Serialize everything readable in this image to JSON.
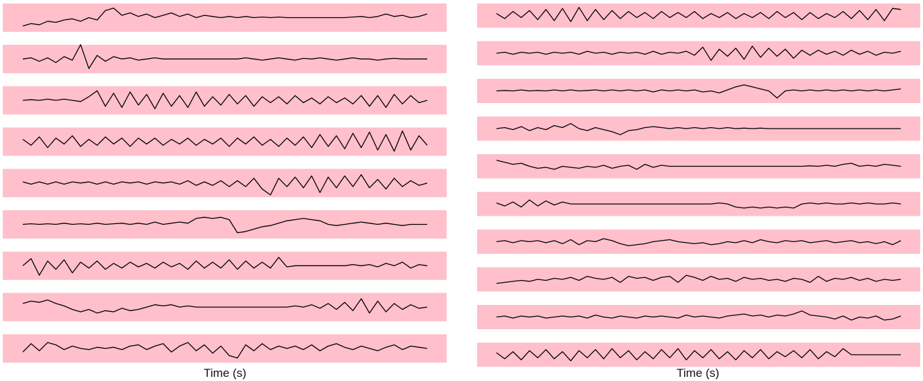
{
  "chart_data": [
    {
      "type": "line",
      "xlabel": "Time (s)",
      "grid": false,
      "background_color": "#ffc0cb",
      "trace_color": "#000000",
      "series": [
        {
          "values": [
            -0.7,
            -0.5,
            -0.6,
            -0.3,
            -0.4,
            -0.2,
            -0.1,
            -0.3,
            0.0,
            -0.2,
            0.6,
            0.8,
            0.2,
            0.4,
            0.1,
            0.3,
            0.0,
            0.2,
            0.4,
            0.1,
            0.3,
            0.0,
            0.2,
            0.1,
            0.0,
            0.1,
            0.0,
            0.1,
            0.0,
            0.05,
            0.0,
            0.05,
            0.0,
            0.0,
            0.0,
            0.0,
            0.0,
            0.0,
            0.0,
            0.0,
            0.05,
            0.1,
            0.0,
            0.1,
            0.3,
            0.1,
            0.2,
            0.0,
            0.1,
            0.3
          ]
        },
        {
          "values": [
            0.0,
            0.1,
            -0.2,
            0.1,
            -0.3,
            0.2,
            -0.1,
            1.2,
            -0.8,
            0.3,
            -0.2,
            0.2,
            0.0,
            0.1,
            -0.1,
            0.0,
            0.1,
            0.0,
            0.0,
            0.0,
            0.0,
            0.0,
            0.0,
            0.0,
            0.0,
            0.0,
            0.0,
            0.1,
            0.0,
            -0.1,
            0.0,
            0.1,
            0.0,
            -0.1,
            0.05,
            0.0,
            0.1,
            0.0,
            -0.1,
            0.0,
            0.1,
            0.0,
            0.0,
            -0.1,
            0.0,
            0.05,
            0.0,
            0.0,
            0.0,
            0.0
          ]
        },
        {
          "values": [
            0.0,
            0.05,
            0.0,
            0.1,
            0.0,
            0.1,
            0.0,
            -0.1,
            0.3,
            0.8,
            -0.5,
            0.6,
            -0.6,
            0.7,
            -0.4,
            0.5,
            -0.7,
            0.6,
            -0.5,
            0.4,
            -0.6,
            0.7,
            -0.5,
            0.3,
            -0.4,
            0.5,
            -0.3,
            0.4,
            -0.5,
            0.3,
            -0.2,
            0.3,
            -0.3,
            0.4,
            -0.2,
            0.2,
            -0.3,
            0.3,
            -0.2,
            0.2,
            -0.3,
            0.4,
            -0.5,
            0.4,
            -0.6,
            0.5,
            -0.3,
            0.4,
            -0.2,
            0.0
          ]
        },
        {
          "values": [
            0.2,
            -0.3,
            0.4,
            -0.5,
            0.3,
            -0.2,
            0.5,
            -0.4,
            0.2,
            -0.3,
            0.4,
            -0.2,
            0.3,
            -0.4,
            0.3,
            -0.2,
            0.3,
            -0.3,
            0.2,
            -0.2,
            0.3,
            -0.3,
            0.2,
            -0.2,
            0.3,
            -0.4,
            0.3,
            -0.2,
            0.4,
            -0.3,
            0.2,
            -0.4,
            0.3,
            -0.3,
            0.4,
            -0.5,
            0.6,
            -0.4,
            0.5,
            -0.6,
            0.7,
            -0.5,
            0.8,
            -0.7,
            0.6,
            -0.8,
            0.9,
            -0.7,
            0.5,
            -0.3
          ]
        },
        {
          "values": [
            0.1,
            -0.1,
            0.1,
            -0.1,
            0.1,
            -0.1,
            0.1,
            0.0,
            0.1,
            -0.1,
            0.1,
            -0.1,
            0.1,
            0.0,
            0.1,
            -0.1,
            0.1,
            0.0,
            0.1,
            -0.1,
            0.2,
            -0.2,
            0.1,
            -0.2,
            0.2,
            -0.3,
            0.2,
            -0.3,
            0.4,
            -0.5,
            -1.0,
            0.4,
            -0.3,
            0.5,
            -0.4,
            0.6,
            -0.8,
            0.5,
            -0.4,
            0.6,
            -0.3,
            0.7,
            -0.4,
            0.3,
            -0.5,
            0.4,
            -0.3,
            0.2,
            -0.2,
            0.0
          ]
        },
        {
          "values": [
            0.0,
            0.05,
            0.0,
            0.05,
            0.0,
            0.1,
            0.0,
            0.05,
            0.0,
            0.1,
            0.0,
            0.05,
            0.1,
            0.0,
            0.1,
            0.0,
            0.2,
            0.0,
            0.1,
            0.2,
            0.1,
            0.5,
            0.6,
            0.5,
            0.6,
            0.4,
            -0.7,
            -0.6,
            -0.4,
            -0.2,
            -0.1,
            0.1,
            0.3,
            0.4,
            0.5,
            0.4,
            0.3,
            0.0,
            -0.1,
            0.0,
            0.1,
            0.2,
            0.1,
            0.0,
            0.1,
            0.0,
            -0.1,
            0.0,
            0.0,
            0.0
          ]
        },
        {
          "values": [
            0.0,
            0.6,
            -0.8,
            0.4,
            -0.3,
            0.5,
            -0.6,
            0.3,
            -0.2,
            0.4,
            -0.3,
            0.2,
            -0.2,
            0.3,
            -0.1,
            0.2,
            -0.2,
            0.3,
            -0.1,
            0.2,
            -0.3,
            0.4,
            -0.2,
            0.3,
            -0.2,
            0.5,
            -0.3,
            0.4,
            -0.2,
            0.3,
            -0.2,
            0.7,
            -0.1,
            0.0,
            0.0,
            0.0,
            0.0,
            0.0,
            0.0,
            0.0,
            0.1,
            0.0,
            0.1,
            -0.1,
            0.2,
            0.0,
            0.3,
            -0.2,
            0.1,
            0.0
          ]
        },
        {
          "values": [
            0.3,
            0.5,
            0.4,
            0.6,
            0.3,
            0.1,
            -0.2,
            -0.4,
            -0.2,
            -0.5,
            -0.3,
            -0.4,
            -0.1,
            -0.3,
            -0.2,
            0.0,
            0.2,
            0.1,
            0.2,
            0.0,
            0.1,
            0.0,
            0.0,
            0.0,
            0.0,
            0.0,
            0.0,
            0.0,
            0.0,
            0.0,
            0.0,
            0.0,
            0.0,
            0.1,
            0.0,
            0.2,
            -0.1,
            0.3,
            -0.2,
            0.4,
            -0.3,
            0.7,
            -0.5,
            0.5,
            -0.4,
            0.3,
            -0.2,
            0.2,
            -0.1,
            0.0
          ]
        },
        {
          "values": [
            -0.3,
            0.4,
            -0.2,
            0.5,
            0.3,
            -0.1,
            0.2,
            0.0,
            -0.1,
            0.1,
            0.0,
            0.1,
            -0.1,
            0.2,
            0.3,
            -0.1,
            0.2,
            0.4,
            -0.3,
            0.2,
            0.5,
            -0.2,
            0.3,
            -0.4,
            0.2,
            -0.6,
            -0.8,
            0.3,
            -0.2,
            0.4,
            -0.1,
            0.2,
            0.0,
            0.2,
            -0.1,
            0.3,
            -0.2,
            0.2,
            0.4,
            0.1,
            -0.1,
            0.2,
            0.0,
            -0.2,
            0.1,
            0.3,
            -0.1,
            0.2,
            0.1,
            0.0
          ]
        }
      ]
    },
    {
      "type": "line",
      "xlabel": "Time (s)",
      "grid": false,
      "background_color": "#ffc0cb",
      "trace_color": "#000000",
      "series": [
        {
          "values": [
            0.2,
            -0.3,
            0.4,
            -0.2,
            0.5,
            -0.4,
            0.6,
            -0.5,
            0.7,
            -0.6,
            0.8,
            -0.5,
            0.6,
            -0.4,
            0.5,
            -0.3,
            0.4,
            -0.2,
            0.3,
            -0.3,
            0.4,
            -0.2,
            0.3,
            -0.2,
            0.4,
            -0.3,
            0.2,
            -0.2,
            0.3,
            -0.3,
            0.2,
            -0.2,
            0.3,
            -0.3,
            0.4,
            -0.2,
            0.3,
            -0.4,
            0.3,
            -0.3,
            0.2,
            -0.2,
            0.4,
            -0.3,
            0.5,
            -0.4,
            0.6,
            -0.5,
            0.7,
            0.6
          ]
        },
        {
          "values": [
            0.0,
            0.1,
            -0.1,
            0.1,
            0.0,
            0.1,
            -0.1,
            0.1,
            0.0,
            0.1,
            -0.1,
            0.2,
            0.0,
            0.1,
            -0.1,
            0.1,
            0.0,
            0.1,
            -0.1,
            0.2,
            -0.1,
            0.1,
            0.0,
            0.2,
            -0.2,
            0.6,
            -0.7,
            0.4,
            -0.3,
            0.5,
            -0.6,
            0.7,
            -0.4,
            0.5,
            -0.3,
            0.4,
            -0.5,
            0.3,
            -0.2,
            0.3,
            -0.1,
            0.2,
            -0.2,
            0.3,
            -0.1,
            0.2,
            -0.2,
            0.1,
            0.0,
            0.2
          ]
        },
        {
          "values": [
            0.0,
            0.05,
            0.0,
            0.1,
            0.0,
            0.05,
            0.0,
            0.1,
            0.0,
            0.1,
            0.0,
            0.05,
            0.1,
            0.0,
            0.1,
            0.0,
            0.1,
            0.0,
            0.1,
            -0.1,
            0.1,
            0.0,
            0.1,
            0.0,
            0.1,
            -0.1,
            0.0,
            -0.2,
            0.1,
            0.4,
            0.6,
            0.4,
            0.2,
            0.0,
            -0.7,
            0.0,
            0.1,
            0.0,
            0.1,
            0.0,
            0.1,
            0.0,
            0.1,
            0.0,
            0.1,
            0.0,
            0.1,
            0.0,
            0.1,
            0.2
          ]
        },
        {
          "values": [
            0.0,
            0.1,
            -0.1,
            0.2,
            -0.2,
            0.1,
            -0.1,
            0.3,
            0.1,
            0.5,
            0.0,
            -0.2,
            0.1,
            -0.1,
            -0.3,
            -0.6,
            -0.2,
            -0.1,
            0.1,
            0.2,
            0.1,
            0.0,
            0.1,
            0.0,
            0.1,
            0.0,
            0.1,
            0.0,
            0.1,
            0.0,
            0.05,
            0.0,
            0.05,
            0.0,
            0.0,
            0.0,
            0.0,
            0.0,
            0.0,
            0.0,
            0.0,
            0.0,
            0.0,
            0.0,
            0.0,
            0.0,
            0.0,
            0.0,
            0.0,
            0.0
          ]
        },
        {
          "values": [
            0.6,
            0.4,
            0.2,
            0.3,
            0.0,
            -0.2,
            -0.1,
            -0.3,
            0.0,
            -0.1,
            -0.2,
            0.0,
            -0.1,
            0.1,
            -0.2,
            0.0,
            0.1,
            -0.3,
            0.2,
            -0.1,
            0.1,
            0.0,
            0.0,
            0.0,
            0.0,
            0.0,
            0.0,
            0.0,
            0.0,
            0.0,
            0.0,
            0.0,
            0.0,
            0.0,
            0.0,
            0.0,
            0.0,
            0.0,
            0.05,
            0.0,
            0.1,
            0.0,
            0.2,
            0.3,
            0.0,
            0.1,
            0.0,
            0.2,
            0.1,
            0.0
          ]
        },
        {
          "values": [
            0.1,
            -0.2,
            0.2,
            -0.3,
            0.4,
            -0.2,
            0.3,
            -0.1,
            0.2,
            0.0,
            0.0,
            0.0,
            0.0,
            0.0,
            0.0,
            0.0,
            0.0,
            0.0,
            0.0,
            0.0,
            0.0,
            0.0,
            0.0,
            0.0,
            0.0,
            0.0,
            0.0,
            0.1,
            0.0,
            -0.3,
            -0.4,
            -0.3,
            -0.4,
            -0.3,
            -0.4,
            -0.3,
            -0.4,
            0.0,
            0.1,
            0.0,
            0.1,
            0.0,
            0.0,
            0.1,
            0.0,
            0.1,
            0.0,
            0.0,
            0.1,
            0.0
          ]
        },
        {
          "values": [
            0.0,
            0.1,
            -0.1,
            0.1,
            0.0,
            0.1,
            -0.1,
            0.1,
            -0.2,
            0.2,
            -0.3,
            0.1,
            0.0,
            0.3,
            0.1,
            -0.2,
            -0.4,
            -0.3,
            -0.2,
            0.0,
            0.1,
            0.2,
            0.0,
            -0.1,
            -0.2,
            -0.1,
            -0.3,
            -0.2,
            0.0,
            -0.1,
            0.1,
            -0.1,
            0.2,
            0.0,
            -0.1,
            0.1,
            0.0,
            0.1,
            -0.1,
            0.0,
            0.1,
            -0.1,
            0.0,
            0.1,
            -0.1,
            0.0,
            -0.2,
            0.0,
            -0.3,
            0.1
          ]
        },
        {
          "values": [
            -0.4,
            -0.3,
            -0.2,
            -0.1,
            -0.2,
            0.0,
            -0.1,
            0.1,
            0.0,
            0.2,
            -0.1,
            0.3,
            0.1,
            0.0,
            0.2,
            -0.3,
            0.3,
            0.1,
            0.2,
            -0.1,
            0.2,
            0.3,
            -0.3,
            0.4,
            0.2,
            -0.1,
            0.3,
            0.0,
            0.1,
            -0.2,
            0.2,
            0.0,
            0.1,
            -0.1,
            0.0,
            -0.2,
            0.1,
            0.0,
            -0.3,
            0.3,
            -0.2,
            0.1,
            0.0,
            0.2,
            -0.1,
            0.1,
            -0.2,
            0.0,
            -0.1,
            0.0
          ]
        },
        {
          "values": [
            0.0,
            0.1,
            -0.1,
            0.1,
            0.0,
            0.1,
            -0.1,
            0.0,
            0.1,
            0.0,
            0.1,
            -0.1,
            0.2,
            0.0,
            -0.1,
            0.1,
            0.0,
            -0.1,
            0.1,
            0.0,
            0.1,
            0.0,
            -0.1,
            0.2,
            0.0,
            0.1,
            0.0,
            -0.1,
            0.1,
            0.2,
            0.3,
            0.1,
            0.2,
            0.0,
            0.2,
            0.1,
            0.3,
            0.6,
            0.2,
            0.1,
            0.0,
            -0.2,
            0.1,
            -0.3,
            0.0,
            -0.1,
            0.1,
            -0.3,
            -0.2,
            0.1
          ]
        },
        {
          "values": [
            0.2,
            -0.4,
            0.3,
            -0.5,
            0.4,
            -0.3,
            0.5,
            -0.4,
            0.3,
            -0.6,
            0.4,
            -0.3,
            0.5,
            -0.4,
            0.6,
            -0.3,
            0.4,
            -0.5,
            0.3,
            -0.4,
            0.5,
            -0.3,
            0.6,
            -0.5,
            0.4,
            -0.3,
            0.5,
            -0.4,
            0.3,
            -0.5,
            0.4,
            -0.3,
            0.5,
            -0.4,
            0.3,
            -0.2,
            0.4,
            -0.3,
            0.5,
            -0.4,
            0.3,
            -0.2,
            0.6,
            0.0,
            0.0,
            0.0,
            0.0,
            0.0,
            0.0,
            0.0
          ]
        }
      ]
    }
  ]
}
